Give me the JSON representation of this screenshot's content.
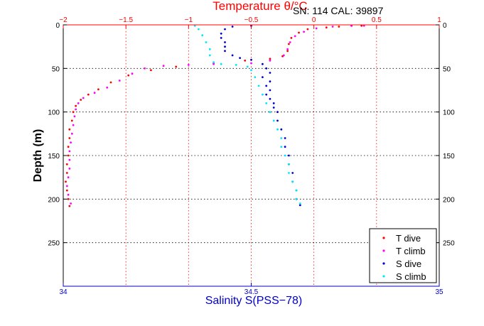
{
  "header": {
    "title": "Temperature θ/°C",
    "serial": "SN: 114  CAL: 39897"
  },
  "colors": {
    "t_axis": "#ff0000",
    "s_axis": "#0000cc",
    "t_dive": "#ff0000",
    "t_climb": "#ff00ff",
    "s_dive": "#0000cc",
    "s_climb": "#00e5ff"
  },
  "chart_data": {
    "type": "scatter",
    "title": "Temperature θ/°C",
    "xlabel": "Salinity S(PSS−78)",
    "ylabel": "Depth (m)",
    "y_reversed": true,
    "grid": true,
    "legend_position": "bottom-right",
    "x_bottom": {
      "label": "Salinity S(PSS−78)",
      "lim": [
        34,
        35
      ],
      "ticks": [
        34,
        34.5,
        35
      ],
      "tick_labels": [
        "34",
        "34.5",
        "35"
      ]
    },
    "x_top": {
      "label": "Temperature θ/°C",
      "lim": [
        -2,
        1
      ],
      "ticks": [
        -2,
        -1.5,
        -1,
        -0.5,
        0,
        0.5,
        1
      ],
      "tick_labels": [
        "−2",
        "−1.5",
        "−1",
        "−0.5",
        "0",
        "0.5",
        "1"
      ]
    },
    "y": {
      "label": "Depth (m)",
      "lim": [
        0,
        300
      ],
      "ticks": [
        0,
        50,
        100,
        150,
        200,
        250
      ],
      "tick_labels": [
        "0",
        "50",
        "100",
        "150",
        "200",
        "250"
      ]
    },
    "series": [
      {
        "name": "T dive",
        "axis": "temperature",
        "marker": "dot",
        "points": [
          [
            0.38,
            1
          ],
          [
            0.3,
            1
          ],
          [
            0.2,
            2
          ],
          [
            0.1,
            3
          ],
          [
            -0.05,
            5
          ],
          [
            -0.12,
            9
          ],
          [
            -0.18,
            15
          ],
          [
            -0.2,
            22
          ],
          [
            -0.21,
            30
          ],
          [
            -0.25,
            36
          ],
          [
            -0.35,
            39
          ],
          [
            -0.55,
            41
          ],
          [
            -0.8,
            44
          ],
          [
            -1.1,
            48
          ],
          [
            -1.3,
            52
          ],
          [
            -1.48,
            58
          ],
          [
            -1.62,
            66
          ],
          [
            -1.72,
            74
          ],
          [
            -1.8,
            80
          ],
          [
            -1.86,
            86
          ],
          [
            -1.9,
            93
          ],
          [
            -1.92,
            100
          ],
          [
            -1.93,
            110
          ],
          [
            -1.95,
            120
          ],
          [
            -1.95,
            130
          ],
          [
            -1.96,
            140
          ],
          [
            -1.96,
            150
          ],
          [
            -1.97,
            160
          ],
          [
            -1.97,
            170
          ],
          [
            -1.98,
            180
          ],
          [
            -1.97,
            190
          ],
          [
            -1.96,
            200
          ],
          [
            -1.95,
            208
          ]
        ]
      },
      {
        "name": "T climb",
        "axis": "temperature",
        "marker": "dot",
        "points": [
          [
            -1.94,
            205
          ],
          [
            -1.96,
            195
          ],
          [
            -1.97,
            185
          ],
          [
            -1.96,
            175
          ],
          [
            -1.95,
            165
          ],
          [
            -1.95,
            155
          ],
          [
            -1.95,
            145
          ],
          [
            -1.94,
            135
          ],
          [
            -1.93,
            125
          ],
          [
            -1.92,
            115
          ],
          [
            -1.91,
            105
          ],
          [
            -1.9,
            97
          ],
          [
            -1.88,
            90
          ],
          [
            -1.84,
            84
          ],
          [
            -1.75,
            78
          ],
          [
            -1.65,
            72
          ],
          [
            -1.55,
            64
          ],
          [
            -1.45,
            56
          ],
          [
            -1.35,
            50
          ],
          [
            -1.2,
            47
          ],
          [
            -1.0,
            46
          ],
          [
            -0.8,
            45
          ],
          [
            -0.5,
            44
          ],
          [
            -0.35,
            41
          ],
          [
            -0.24,
            35
          ],
          [
            -0.21,
            28
          ],
          [
            -0.19,
            20
          ],
          [
            -0.15,
            13
          ],
          [
            -0.08,
            8
          ],
          [
            0.02,
            4
          ],
          [
            0.15,
            2
          ],
          [
            0.3,
            1
          ],
          [
            0.4,
            1
          ]
        ]
      },
      {
        "name": "S dive",
        "axis": "salinity",
        "marker": "dot",
        "points": [
          [
            34.5,
            1
          ],
          [
            34.45,
            2
          ],
          [
            34.43,
            5
          ],
          [
            34.42,
            10
          ],
          [
            34.42,
            15
          ],
          [
            34.43,
            20
          ],
          [
            34.43,
            25
          ],
          [
            34.43,
            30
          ],
          [
            34.45,
            35
          ],
          [
            34.47,
            38
          ],
          [
            34.5,
            40
          ],
          [
            34.53,
            45
          ],
          [
            34.54,
            50
          ],
          [
            34.55,
            55
          ],
          [
            34.53,
            60
          ],
          [
            34.55,
            65
          ],
          [
            34.54,
            70
          ],
          [
            34.55,
            75
          ],
          [
            34.54,
            80
          ],
          [
            34.55,
            85
          ],
          [
            34.56,
            90
          ],
          [
            34.56,
            95
          ],
          [
            34.57,
            100
          ],
          [
            34.57,
            110
          ],
          [
            34.58,
            120
          ],
          [
            34.59,
            130
          ],
          [
            34.59,
            140
          ],
          [
            34.6,
            150
          ],
          [
            34.6,
            160
          ],
          [
            34.61,
            170
          ],
          [
            34.61,
            180
          ],
          [
            34.62,
            190
          ],
          [
            34.62,
            200
          ],
          [
            34.63,
            207
          ]
        ]
      },
      {
        "name": "S climb",
        "axis": "salinity",
        "marker": "dot",
        "points": [
          [
            34.63,
            205
          ],
          [
            34.62,
            200
          ],
          [
            34.62,
            190
          ],
          [
            34.61,
            180
          ],
          [
            34.6,
            170
          ],
          [
            34.6,
            160
          ],
          [
            34.59,
            150
          ],
          [
            34.58,
            140
          ],
          [
            34.58,
            130
          ],
          [
            34.57,
            120
          ],
          [
            34.56,
            110
          ],
          [
            34.55,
            100
          ],
          [
            34.54,
            90
          ],
          [
            34.53,
            80
          ],
          [
            34.52,
            70
          ],
          [
            34.51,
            60
          ],
          [
            34.5,
            52
          ],
          [
            34.49,
            48
          ],
          [
            34.46,
            46
          ],
          [
            34.42,
            45
          ],
          [
            34.4,
            43
          ],
          [
            34.39,
            35
          ],
          [
            34.39,
            28
          ],
          [
            34.38,
            20
          ],
          [
            34.37,
            12
          ],
          [
            34.36,
            5
          ],
          [
            34.35,
            1
          ]
        ]
      }
    ]
  },
  "legend": {
    "items": [
      {
        "label": "T dive",
        "color": "#ff0000"
      },
      {
        "label": "T climb",
        "color": "#ff00ff"
      },
      {
        "label": "S dive",
        "color": "#0000cc"
      },
      {
        "label": "S climb",
        "color": "#00e5ff"
      }
    ]
  }
}
